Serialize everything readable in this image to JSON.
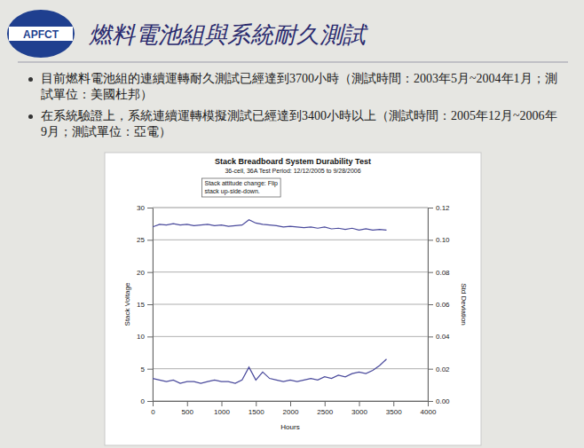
{
  "slide": {
    "logo": "APFCT",
    "title": "燃料電池組與系統耐久測試",
    "bullets": [
      "目前燃料電池組的連續運轉耐久測試已經達到3700小時（測試時間：2003年5月~2004年1月；測試單位：美國杜邦）",
      "在系統驗證上，系統連續運轉模擬測試已經達到3400小時以上（測試時間：2005年12月~2006年9月；測試單位：亞電）"
    ]
  },
  "chart_data": {
    "type": "line",
    "title": "Stack Breadboard System Durability Test",
    "subtitle": "36-cell, 36A Test Period: 12/12/2005 to 9/28/2006",
    "annotation": "Stack attitude change: Flip stack up-side-down.",
    "annotation_x": 1400,
    "x_label": "Hours",
    "y_label": "Stack Voltage",
    "y2_label": "Std Deviation",
    "x": [
      0,
      100,
      200,
      300,
      400,
      500,
      600,
      700,
      800,
      900,
      1000,
      1100,
      1200,
      1300,
      1400,
      1500,
      1600,
      1700,
      1800,
      1900,
      2000,
      2100,
      2200,
      2300,
      2400,
      2500,
      2600,
      2700,
      2800,
      2900,
      3000,
      3100,
      3200,
      3300,
      3400
    ],
    "series": [
      {
        "name": "Stack Voltage",
        "color": "#4a4a9c",
        "values": [
          27.0,
          27.4,
          27.3,
          27.5,
          27.3,
          27.4,
          27.2,
          27.3,
          27.4,
          27.2,
          27.3,
          27.1,
          27.2,
          27.3,
          28.1,
          27.6,
          27.4,
          27.3,
          27.2,
          27.0,
          27.1,
          27.0,
          26.9,
          27.0,
          26.8,
          27.0,
          26.7,
          26.8,
          26.6,
          26.8,
          26.5,
          26.7,
          26.5,
          26.6,
          26.5
        ]
      },
      {
        "name": "Std Deviation",
        "color": "#4a4a9c",
        "axis": "y2",
        "values": [
          0.014,
          0.013,
          0.012,
          0.013,
          0.011,
          0.012,
          0.012,
          0.011,
          0.012,
          0.013,
          0.012,
          0.012,
          0.011,
          0.013,
          0.021,
          0.013,
          0.018,
          0.014,
          0.013,
          0.012,
          0.013,
          0.012,
          0.013,
          0.014,
          0.013,
          0.015,
          0.014,
          0.016,
          0.015,
          0.017,
          0.018,
          0.017,
          0.019,
          0.022,
          0.026
        ]
      }
    ],
    "xlim": [
      0,
      4000
    ],
    "xticks": [
      0,
      500,
      1000,
      1500,
      2000,
      2500,
      3000,
      3500,
      4000
    ],
    "ylim": [
      0,
      30
    ],
    "yticks": [
      0,
      5,
      10,
      15,
      20,
      25,
      30
    ],
    "y2lim": [
      0,
      0.12
    ],
    "y2ticks": [
      {
        "value": 0,
        "label": "0.00"
      },
      0.02,
      0.04,
      0.06,
      0.08,
      {
        "value": 0.1,
        "label": "0.10"
      },
      0.12
    ],
    "grid": true
  }
}
